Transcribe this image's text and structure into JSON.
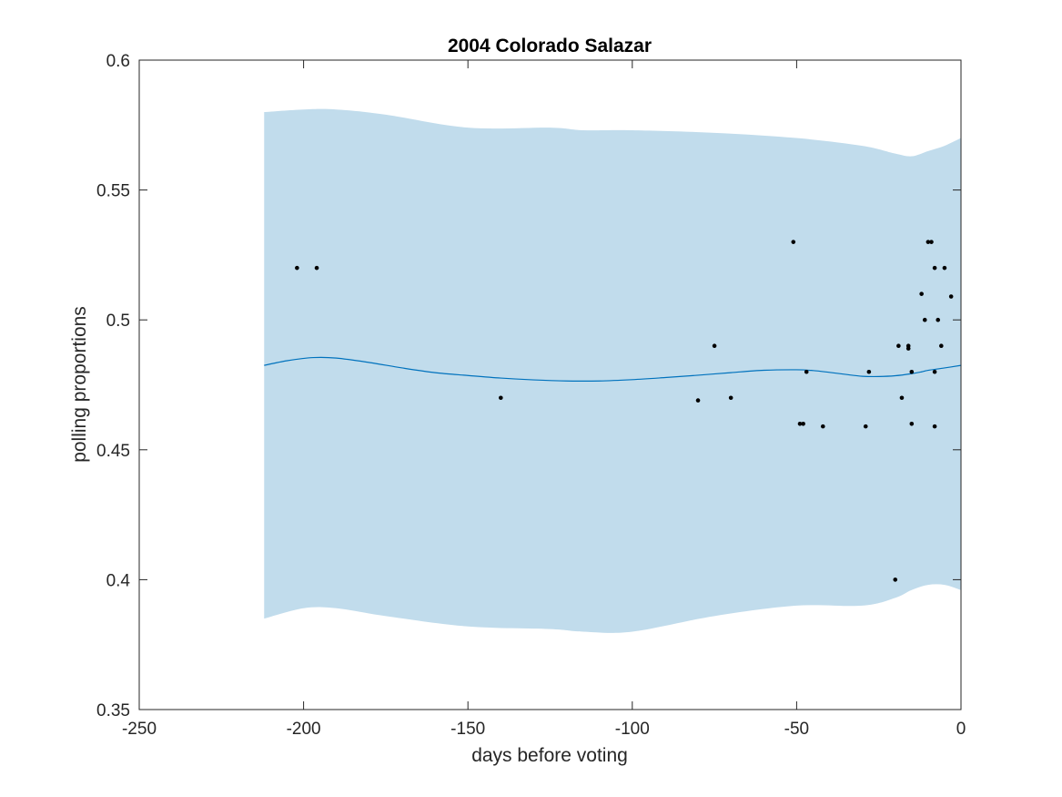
{
  "chart_data": {
    "type": "scatter",
    "title": "2004 Colorado Salazar",
    "xlabel": "days before voting",
    "ylabel": "polling proportions",
    "xlim": [
      -250,
      0
    ],
    "ylim": [
      0.35,
      0.6
    ],
    "xticks": [
      -250,
      -200,
      -150,
      -100,
      -50,
      0
    ],
    "xtick_labels": [
      "-250",
      "-200",
      "-150",
      "-100",
      "-50",
      "0"
    ],
    "yticks": [
      0.35,
      0.4,
      0.45,
      0.5,
      0.55,
      0.6
    ],
    "ytick_labels": [
      "0.35",
      "0.4",
      "0.45",
      "0.5",
      "0.55",
      "0.6"
    ],
    "grid": false,
    "legend": "none",
    "colors": {
      "band": "#c1dcec",
      "trend": "#0072bd",
      "points": "#000000",
      "axis": "#262626"
    },
    "band": {
      "x": [
        -212,
        -200,
        -190,
        -175,
        -150,
        -125,
        -115,
        -100,
        -75,
        -50,
        -30,
        -20,
        -15,
        -10,
        -5,
        0
      ],
      "upper": [
        0.58,
        0.581,
        0.581,
        0.579,
        0.574,
        0.574,
        0.573,
        0.573,
        0.572,
        0.57,
        0.567,
        0.564,
        0.563,
        0.565,
        0.567,
        0.57
      ],
      "lower": [
        0.385,
        0.389,
        0.389,
        0.386,
        0.382,
        0.381,
        0.38,
        0.38,
        0.386,
        0.39,
        0.39,
        0.393,
        0.396,
        0.398,
        0.398,
        0.396
      ]
    },
    "trend": {
      "x": [
        -212,
        -205,
        -197,
        -190,
        -180,
        -170,
        -160,
        -150,
        -140,
        -130,
        -120,
        -110,
        -100,
        -90,
        -80,
        -70,
        -60,
        -50,
        -45,
        -40,
        -35,
        -30,
        -25,
        -20,
        -15,
        -12,
        -10,
        -5,
        0
      ],
      "y": [
        0.4825,
        0.4843,
        0.4855,
        0.4853,
        0.4836,
        0.4815,
        0.4797,
        0.4786,
        0.4776,
        0.4769,
        0.4765,
        0.4765,
        0.477,
        0.4778,
        0.4787,
        0.4797,
        0.4806,
        0.4808,
        0.4805,
        0.4798,
        0.479,
        0.4783,
        0.4782,
        0.4785,
        0.4793,
        0.48,
        0.4806,
        0.4815,
        0.4825
      ]
    },
    "points": [
      {
        "x": -202,
        "y": 0.52
      },
      {
        "x": -196,
        "y": 0.52
      },
      {
        "x": -140,
        "y": 0.47
      },
      {
        "x": -80,
        "y": 0.469
      },
      {
        "x": -75,
        "y": 0.49
      },
      {
        "x": -70,
        "y": 0.47
      },
      {
        "x": -51,
        "y": 0.53
      },
      {
        "x": -49,
        "y": 0.46
      },
      {
        "x": -48,
        "y": 0.46
      },
      {
        "x": -47,
        "y": 0.48
      },
      {
        "x": -42,
        "y": 0.459
      },
      {
        "x": -29,
        "y": 0.459
      },
      {
        "x": -28,
        "y": 0.48
      },
      {
        "x": -20,
        "y": 0.4
      },
      {
        "x": -19,
        "y": 0.49
      },
      {
        "x": -18,
        "y": 0.47
      },
      {
        "x": -16,
        "y": 0.49
      },
      {
        "x": -16,
        "y": 0.489
      },
      {
        "x": -15,
        "y": 0.46
      },
      {
        "x": -15,
        "y": 0.48
      },
      {
        "x": -12,
        "y": 0.51
      },
      {
        "x": -11,
        "y": 0.5
      },
      {
        "x": -10,
        "y": 0.53
      },
      {
        "x": -9,
        "y": 0.53
      },
      {
        "x": -8,
        "y": 0.52
      },
      {
        "x": -8,
        "y": 0.48
      },
      {
        "x": -8,
        "y": 0.459
      },
      {
        "x": -7,
        "y": 0.5
      },
      {
        "x": -6,
        "y": 0.49
      },
      {
        "x": -5,
        "y": 0.52
      },
      {
        "x": -3,
        "y": 0.509
      }
    ]
  }
}
